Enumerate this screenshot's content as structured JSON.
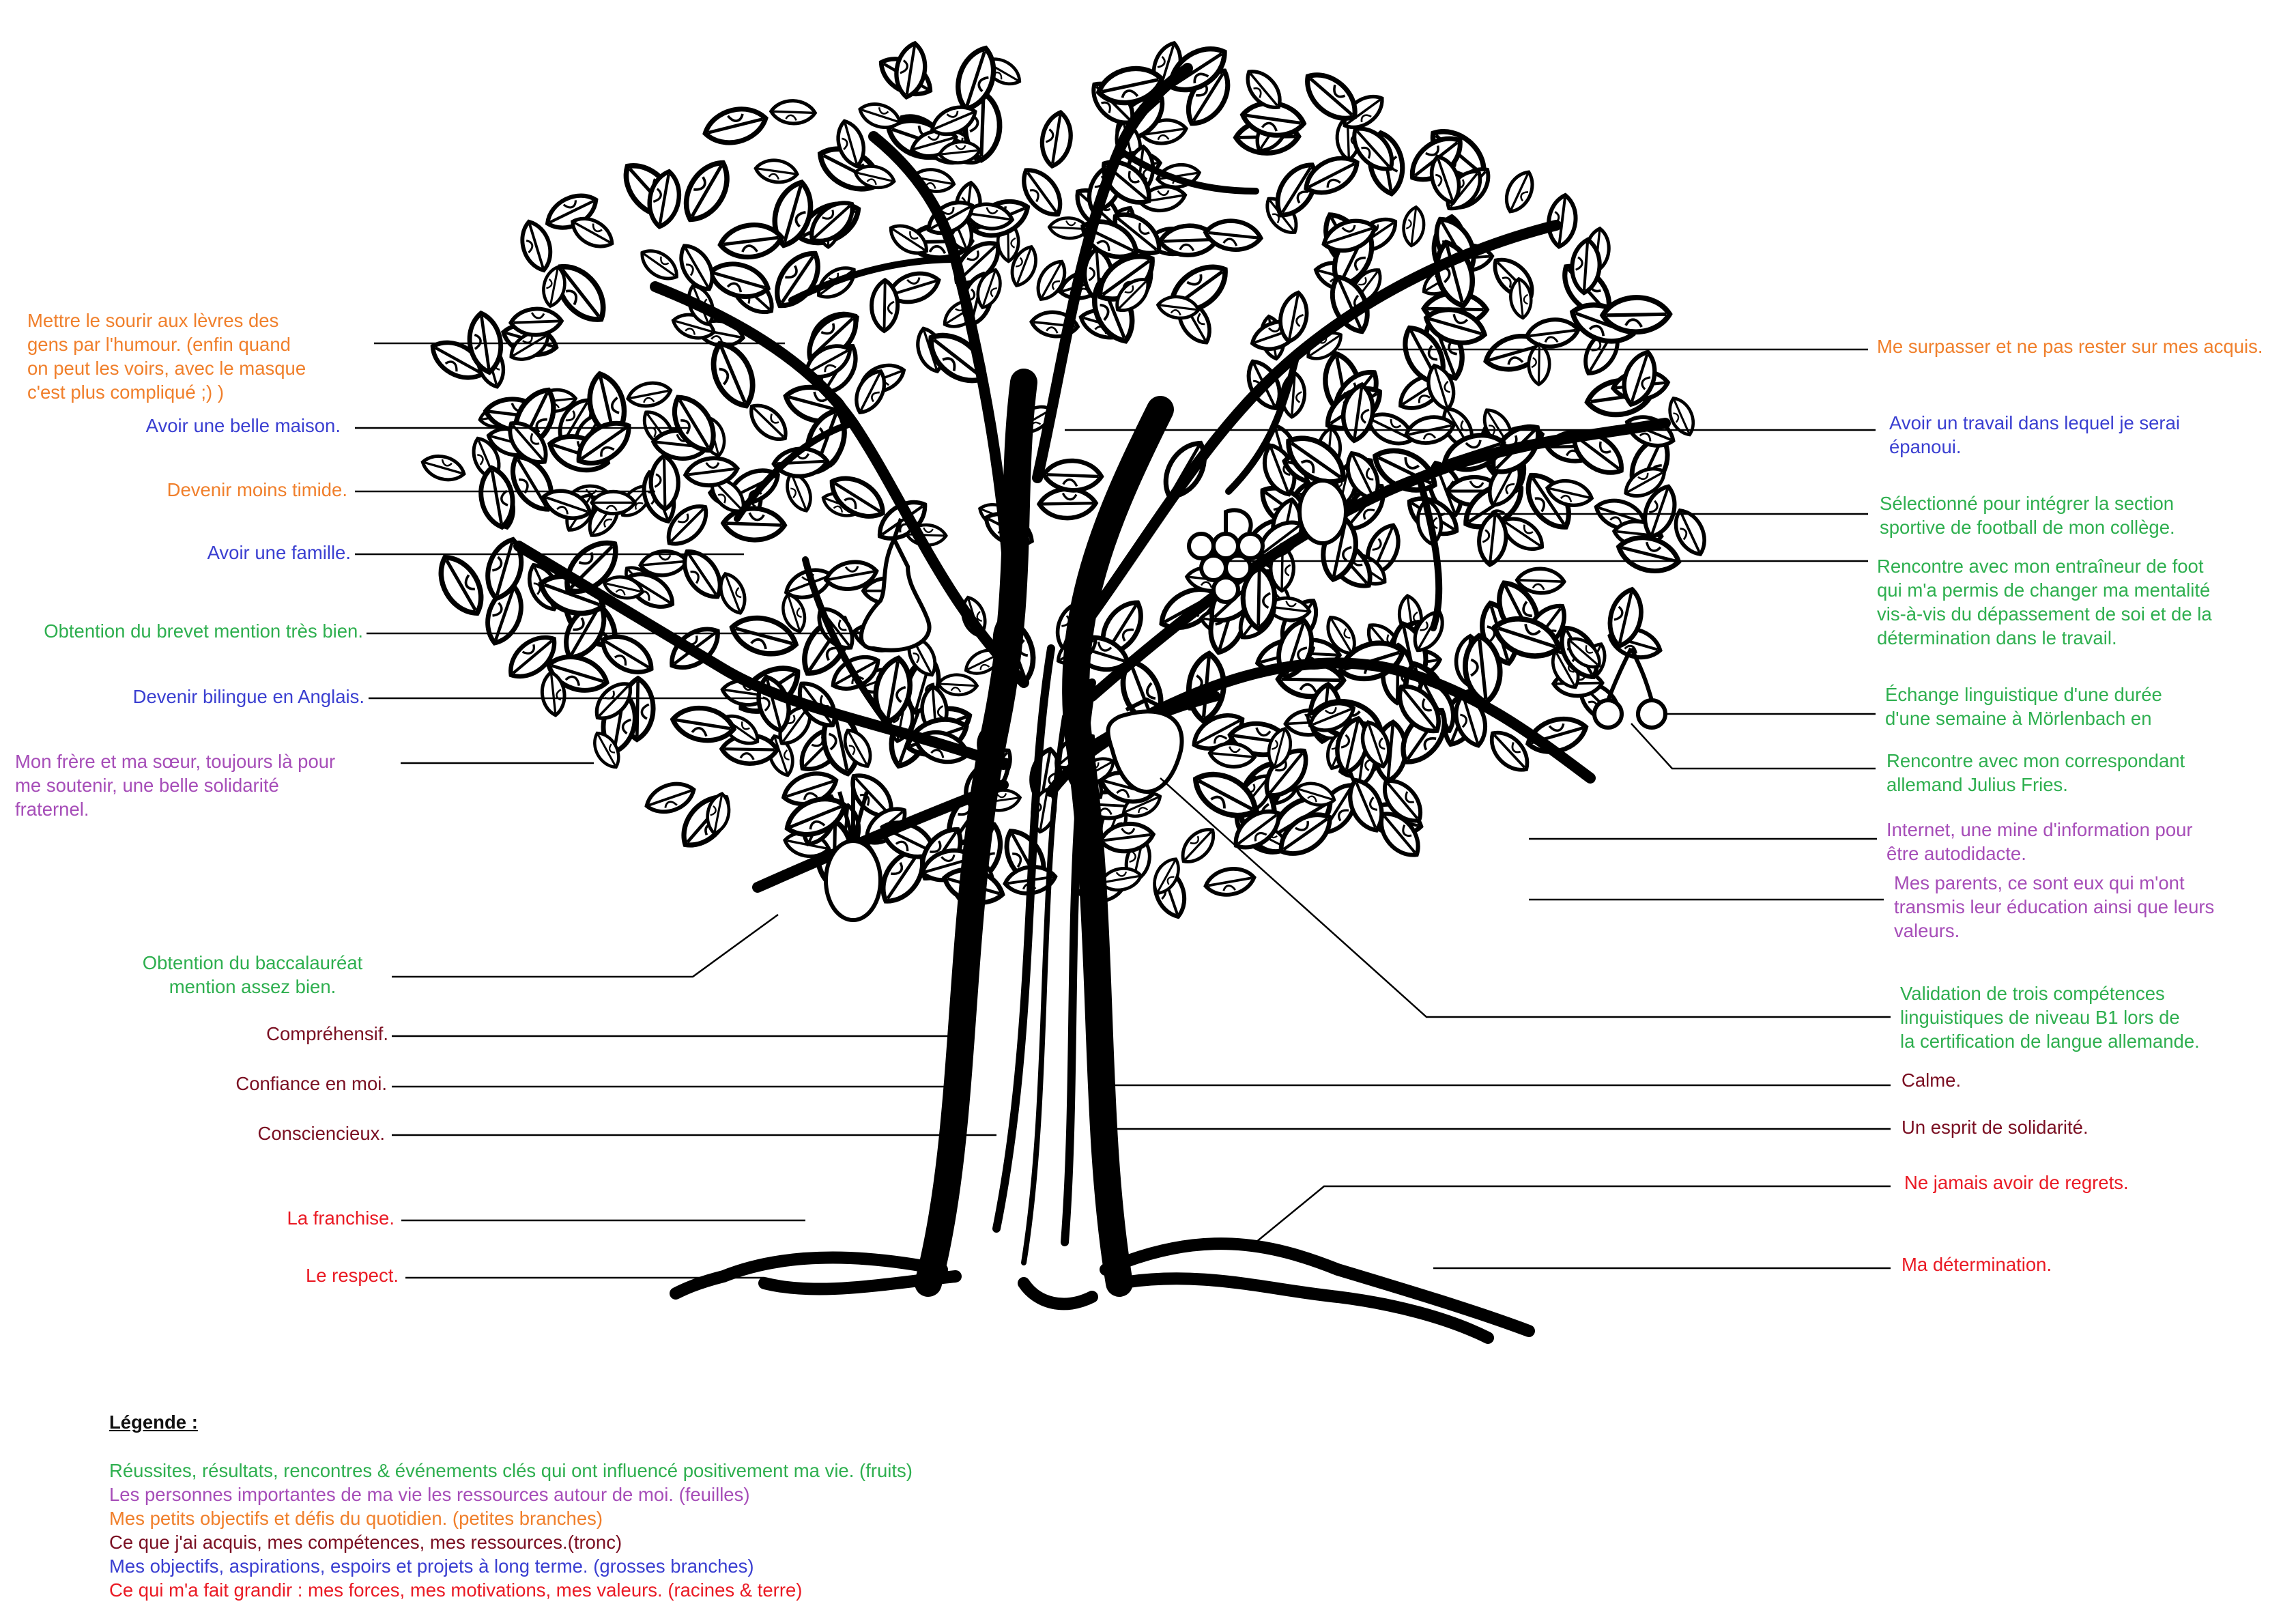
{
  "colors": {
    "fruits": "#2eaf4f",
    "leaves": "#a64db8",
    "small_branches": "#f07f2b",
    "trunk": "#7a0f22",
    "big_branches": "#3a3fd1",
    "roots": "#ea1a24"
  },
  "left_labels": [
    {
      "id": "humour",
      "category": "small",
      "text": "Mettre le sourir aux lèvres des\ngens par l'humour. (enfin quand\non peut les voirs, avec le masque\nc'est plus compliqué ;) )"
    },
    {
      "id": "maison",
      "category": "big",
      "text": "Avoir une belle maison."
    },
    {
      "id": "timide",
      "category": "small",
      "text": "Devenir moins timide."
    },
    {
      "id": "famille",
      "category": "big",
      "text": "Avoir une famille."
    },
    {
      "id": "brevet",
      "category": "fruits",
      "text": "Obtention du brevet mention très bien."
    },
    {
      "id": "bilingue",
      "category": "big",
      "text": "Devenir bilingue en Anglais."
    },
    {
      "id": "frere",
      "category": "leaves",
      "text": "Mon frère et ma sœur, toujours là pour\nme soutenir, une belle solidarité\nfraternel."
    },
    {
      "id": "bac",
      "category": "fruits",
      "text": "Obtention du baccalauréat\nmention assez bien."
    },
    {
      "id": "comprehensif",
      "category": "trunk",
      "text": "Compréhensif."
    },
    {
      "id": "confiance",
      "category": "trunk",
      "text": "Confiance en moi."
    },
    {
      "id": "consciencieux",
      "category": "trunk",
      "text": "Consciencieux."
    },
    {
      "id": "franchise",
      "category": "roots",
      "text": "La franchise."
    },
    {
      "id": "respect",
      "category": "roots",
      "text": "Le respect."
    }
  ],
  "right_labels": [
    {
      "id": "surpasser",
      "category": "small",
      "text": "Me surpasser et ne pas rester sur mes acquis."
    },
    {
      "id": "travail",
      "category": "big",
      "text": "Avoir un travail dans lequel je serai\népanoui."
    },
    {
      "id": "football",
      "category": "fruits",
      "text": "Sélectionné pour intégrer la section\nsportive de football de mon collège."
    },
    {
      "id": "entraineur",
      "category": "fruits",
      "text": "Rencontre avec mon entraîneur de foot\nqui m'a permis de changer ma mentalité\nvis-à-vis du dépassement de soi et de la\ndétermination dans le travail."
    },
    {
      "id": "echange",
      "category": "fruits",
      "text": "Échange linguistique d'une durée\nd'une semaine à Mörlenbach en"
    },
    {
      "id": "correspondant",
      "category": "fruits",
      "text": "Rencontre avec mon correspondant\nallemand Julius Fries."
    },
    {
      "id": "internet",
      "category": "leaves",
      "text": "Internet, une mine d'information pour\nêtre autodidacte."
    },
    {
      "id": "parents",
      "category": "leaves",
      "text": "Mes parents, ce sont eux qui m'ont\ntransmis leur éducation ainsi que leurs\nvaleurs."
    },
    {
      "id": "validation",
      "category": "fruits",
      "text": "Validation de trois compétences\nlinguistiques de niveau B1 lors de\nla certification de langue allemande."
    },
    {
      "id": "calme",
      "category": "trunk",
      "text": "Calme."
    },
    {
      "id": "solidarite",
      "category": "trunk",
      "text": "Un esprit de solidarité."
    },
    {
      "id": "regrets",
      "category": "roots",
      "text": "Ne jamais avoir de regrets."
    },
    {
      "id": "determination",
      "category": "roots",
      "text": "Ma détermination."
    }
  ],
  "legend": {
    "title": "Légende :",
    "items": [
      {
        "category": "fruits",
        "text": "Réussites, résultats, rencontres & événements clés qui ont influencé positivement ma vie. (fruits)"
      },
      {
        "category": "leaves",
        "text": "Les personnes importantes de ma vie les ressources autour de moi. (feuilles)"
      },
      {
        "category": "small",
        "text": "Mes petits objectifs et défis du quotidien. (petites branches)"
      },
      {
        "category": "trunk",
        "text": "Ce que j'ai acquis, mes compétences, mes ressources.(tronc)"
      },
      {
        "category": "big",
        "text": "Mes objectifs, aspirations, espoirs et projets à long terme. (grosses branches)"
      },
      {
        "category": "roots",
        "text": "Ce qui m'a fait grandir : mes forces, mes motivations, mes valeurs. (racines & terre)"
      }
    ]
  }
}
